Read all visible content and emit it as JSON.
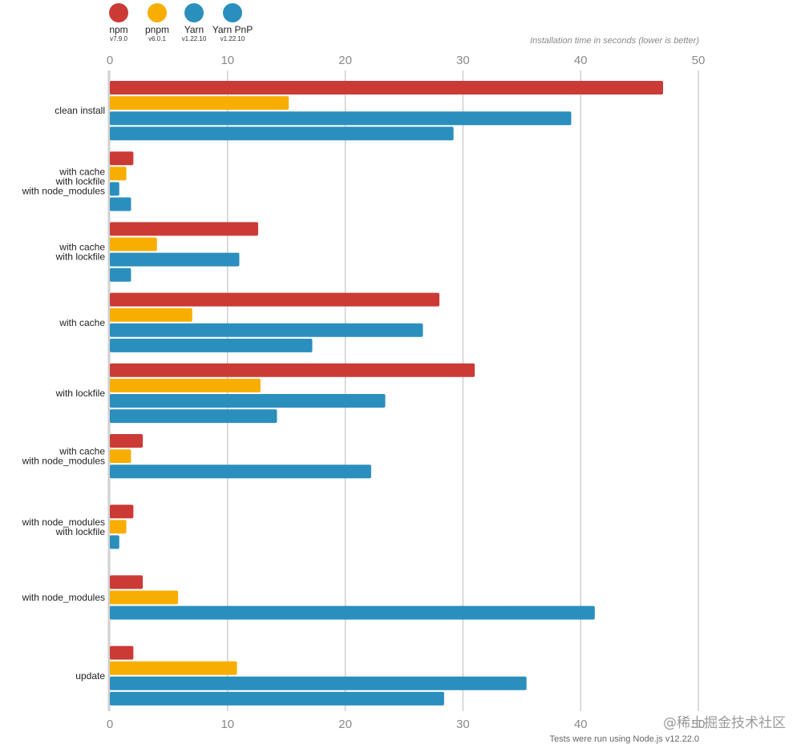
{
  "chart_data": {
    "type": "bar",
    "orientation": "horizontal",
    "xlabel": "Installation time in seconds (lower is better)",
    "xlim": [
      0,
      50
    ],
    "xticks": [
      0,
      10,
      20,
      30,
      40,
      50
    ],
    "grid": true,
    "legend_position": "top-left",
    "footnote": "Tests were run using Node.js v12.22.0",
    "categories": [
      [
        "clean install"
      ],
      [
        "with cache",
        "with lockfile",
        "with node_modules"
      ],
      [
        "with cache",
        "with lockfile"
      ],
      [
        "with cache"
      ],
      [
        "with lockfile"
      ],
      [
        "with cache",
        "with node_modules"
      ],
      [
        "with node_modules",
        "with lockfile"
      ],
      [
        "with node_modules"
      ],
      [
        "update"
      ]
    ],
    "series": [
      {
        "name": "npm",
        "version": "v7.9.0",
        "color": "#cc3a35",
        "values": [
          47.0,
          2.0,
          12.6,
          28.0,
          31.0,
          2.8,
          2.0,
          2.8,
          2.0
        ]
      },
      {
        "name": "pnpm",
        "version": "v6.0.1",
        "color": "#f8ae00",
        "values": [
          15.2,
          1.4,
          4.0,
          7.0,
          12.8,
          1.8,
          1.4,
          5.8,
          10.8
        ]
      },
      {
        "name": "Yarn",
        "version": "v1.22.10",
        "color": "#2a8fbd",
        "values": [
          39.2,
          0.8,
          11.0,
          26.6,
          23.4,
          22.2,
          0.8,
          41.2,
          35.4
        ]
      },
      {
        "name": "Yarn PnP",
        "version": "v1.22.10",
        "color": "#2a8fbd",
        "values": [
          29.2,
          1.8,
          1.8,
          17.2,
          14.2,
          null,
          null,
          null,
          28.4
        ]
      }
    ]
  },
  "watermark": "@稀土掘金技术社区"
}
